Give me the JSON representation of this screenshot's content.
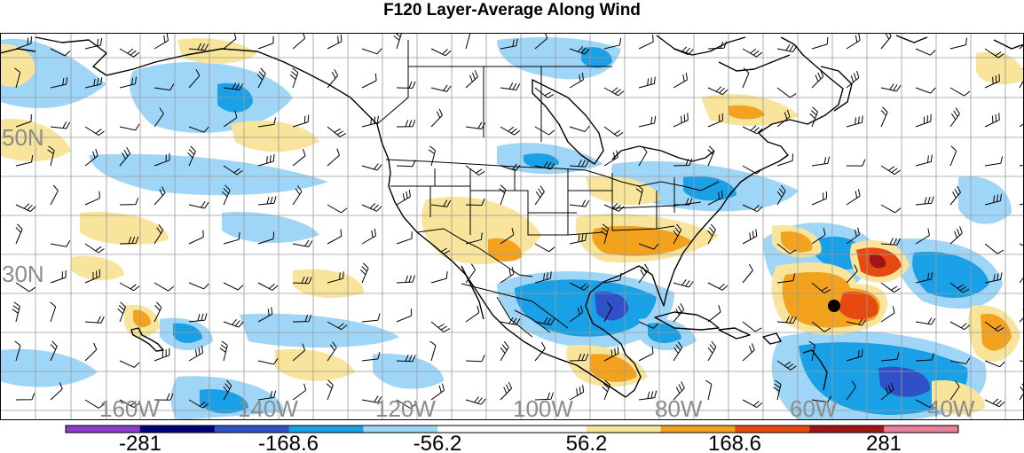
{
  "title": "F120 Layer-Average Along Wind",
  "map": {
    "lat_labels": [
      "50N",
      "30N"
    ],
    "lon_labels": [
      "160W",
      "140W",
      "120W",
      "100W",
      "80W",
      "60W",
      "40W"
    ],
    "marker": "storm-center-dot"
  },
  "colorbar": {
    "colors": [
      "#8a3cc7",
      "#00007a",
      "#3050c8",
      "#1aa0e6",
      "#9fd6f7",
      "#ffffff",
      "#ffffff",
      "#f8e49a",
      "#f3a21d",
      "#e64a10",
      "#a01616",
      "#e8809c"
    ],
    "labels": [
      "-281",
      "-168.6",
      "-56.2",
      "56.2",
      "168.6",
      "281"
    ]
  }
}
